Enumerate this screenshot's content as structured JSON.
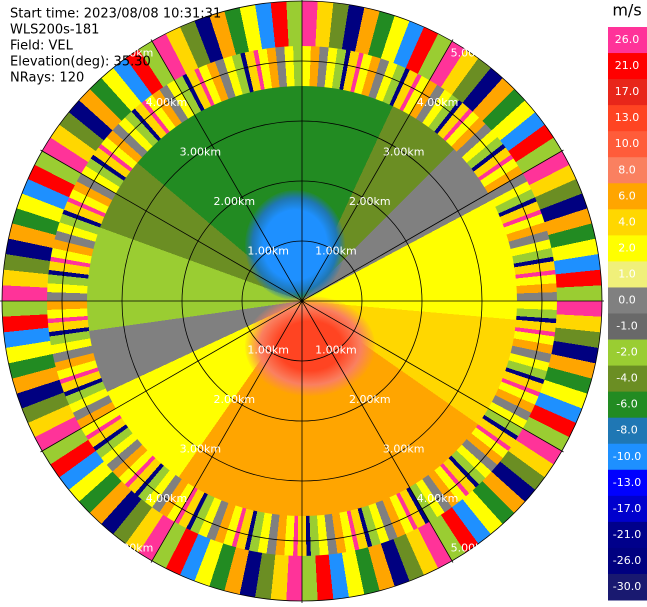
{
  "chart_data": {
    "type": "ppi",
    "info": [
      "Start time: 2023/08/08 10:31:31",
      "WLS200s-181",
      "Field: VEL",
      "Elevation(deg): 35.30",
      "NRays: 120"
    ],
    "range_labels": [
      "1.00km",
      "2.00km",
      "3.00km",
      "4.00km",
      "5.00km"
    ],
    "colorbar": {
      "title": "m/s",
      "levels": [
        {
          "value": 26,
          "label": "26.0"
        },
        {
          "value": 21,
          "label": "21.0"
        },
        {
          "value": 17,
          "label": "17.0"
        },
        {
          "value": 13,
          "label": "13.0"
        },
        {
          "value": 10,
          "label": "10.0"
        },
        {
          "value": 8,
          "label": "8.0"
        },
        {
          "value": 6,
          "label": "6.0"
        },
        {
          "value": 4,
          "label": "4.0"
        },
        {
          "value": 2,
          "label": "2.0"
        },
        {
          "value": 1,
          "label": "1.0"
        },
        {
          "value": 0,
          "label": "0.0"
        },
        {
          "value": -1,
          "label": "-1.0"
        },
        {
          "value": -2,
          "label": "-2.0"
        },
        {
          "value": -4,
          "label": "-4.0"
        },
        {
          "value": -6,
          "label": "-6.0"
        },
        {
          "value": -8,
          "label": "-8.0"
        },
        {
          "value": -10,
          "label": "-10.0"
        },
        {
          "value": -13,
          "label": "-13.0"
        },
        {
          "value": -17,
          "label": "-17.0"
        },
        {
          "value": -21,
          "label": "-21.0"
        },
        {
          "value": -26,
          "label": "-26.0"
        },
        {
          "value": -30,
          "label": "-30.0"
        }
      ],
      "colors": [
        "#ff3399",
        "#ff0000",
        "#e8261a",
        "#ff4422",
        "#ff5c3a",
        "#fa8060",
        "#ffa500",
        "#ffd700",
        "#ffff00",
        "#f0f07a",
        "#808080",
        "#696969",
        "#9acd32",
        "#6b8e23",
        "#228b22",
        "#1f77b4",
        "#1e90ff",
        "#0000ff",
        "#0000cd",
        "#00008b",
        "#000080",
        "#191970"
      ]
    }
  }
}
